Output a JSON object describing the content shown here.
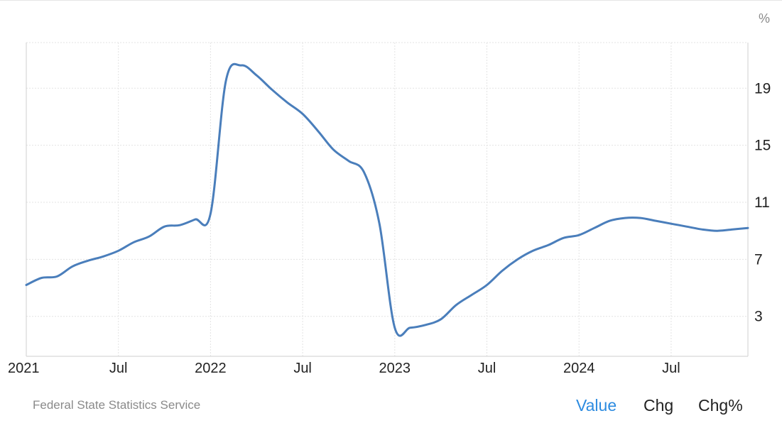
{
  "footer": {
    "source": "Federal State Statistics Service",
    "tabs": [
      {
        "label": "Value",
        "active": true
      },
      {
        "label": "Chg",
        "active": false
      },
      {
        "label": "Chg%",
        "active": false
      }
    ]
  },
  "colors": {
    "line": "#4a7ebb",
    "active_tab": "#2c8be0",
    "grid": "#e3e3e3",
    "text": "#222222",
    "muted": "#8a8a8a"
  },
  "chart_data": {
    "type": "line",
    "title": "",
    "xlabel": "",
    "ylabel": "",
    "unit": "%",
    "y_ticks": [
      3,
      7,
      11,
      15,
      19
    ],
    "ylim": [
      0.2,
      22.2
    ],
    "x_ticks": [
      {
        "label": "2021",
        "x": "2021-01"
      },
      {
        "label": "Jul",
        "x": "2021-07"
      },
      {
        "label": "2022",
        "x": "2022-01"
      },
      {
        "label": "Jul",
        "x": "2022-07"
      },
      {
        "label": "2023",
        "x": "2023-01"
      },
      {
        "label": "Jul",
        "x": "2023-07"
      },
      {
        "label": "2024",
        "x": "2024-01"
      },
      {
        "label": "Jul",
        "x": "2024-07"
      }
    ],
    "xlim": [
      "2021-01",
      "2024-12"
    ],
    "grid": true,
    "legend": "none",
    "series": [
      {
        "x": [
          "2021-01",
          "2021-02",
          "2021-03",
          "2021-04",
          "2021-05",
          "2021-06",
          "2021-07",
          "2021-08",
          "2021-09",
          "2021-10",
          "2021-11",
          "2021-12",
          "2022-01",
          "2022-02",
          "2022-03",
          "2022-04",
          "2022-05",
          "2022-06",
          "2022-07",
          "2022-08",
          "2022-09",
          "2022-10",
          "2022-11",
          "2022-12",
          "2023-01",
          "2023-02",
          "2023-03",
          "2023-04",
          "2023-05",
          "2023-06",
          "2023-07",
          "2023-08",
          "2023-09",
          "2023-10",
          "2023-11",
          "2023-12",
          "2024-01",
          "2024-02",
          "2024-03",
          "2024-04",
          "2024-05",
          "2024-06",
          "2024-07",
          "2024-08",
          "2024-09",
          "2024-10",
          "2024-11",
          "2024-12"
        ],
        "values": [
          5.2,
          5.7,
          5.8,
          6.5,
          6.9,
          7.2,
          7.6,
          8.2,
          8.6,
          9.3,
          9.4,
          9.8,
          10.2,
          19.5,
          20.6,
          19.9,
          18.9,
          18.0,
          17.2,
          16.0,
          14.7,
          13.9,
          13.1,
          9.5,
          2.2,
          2.2,
          2.4,
          2.8,
          3.8,
          4.5,
          5.2,
          6.2,
          7.0,
          7.6,
          8.0,
          8.5,
          8.7,
          9.2,
          9.7,
          9.9,
          9.9,
          9.7,
          9.5,
          9.3,
          9.1,
          9.0,
          9.1,
          9.2
        ],
        "color": "#4a7ebb"
      }
    ]
  }
}
